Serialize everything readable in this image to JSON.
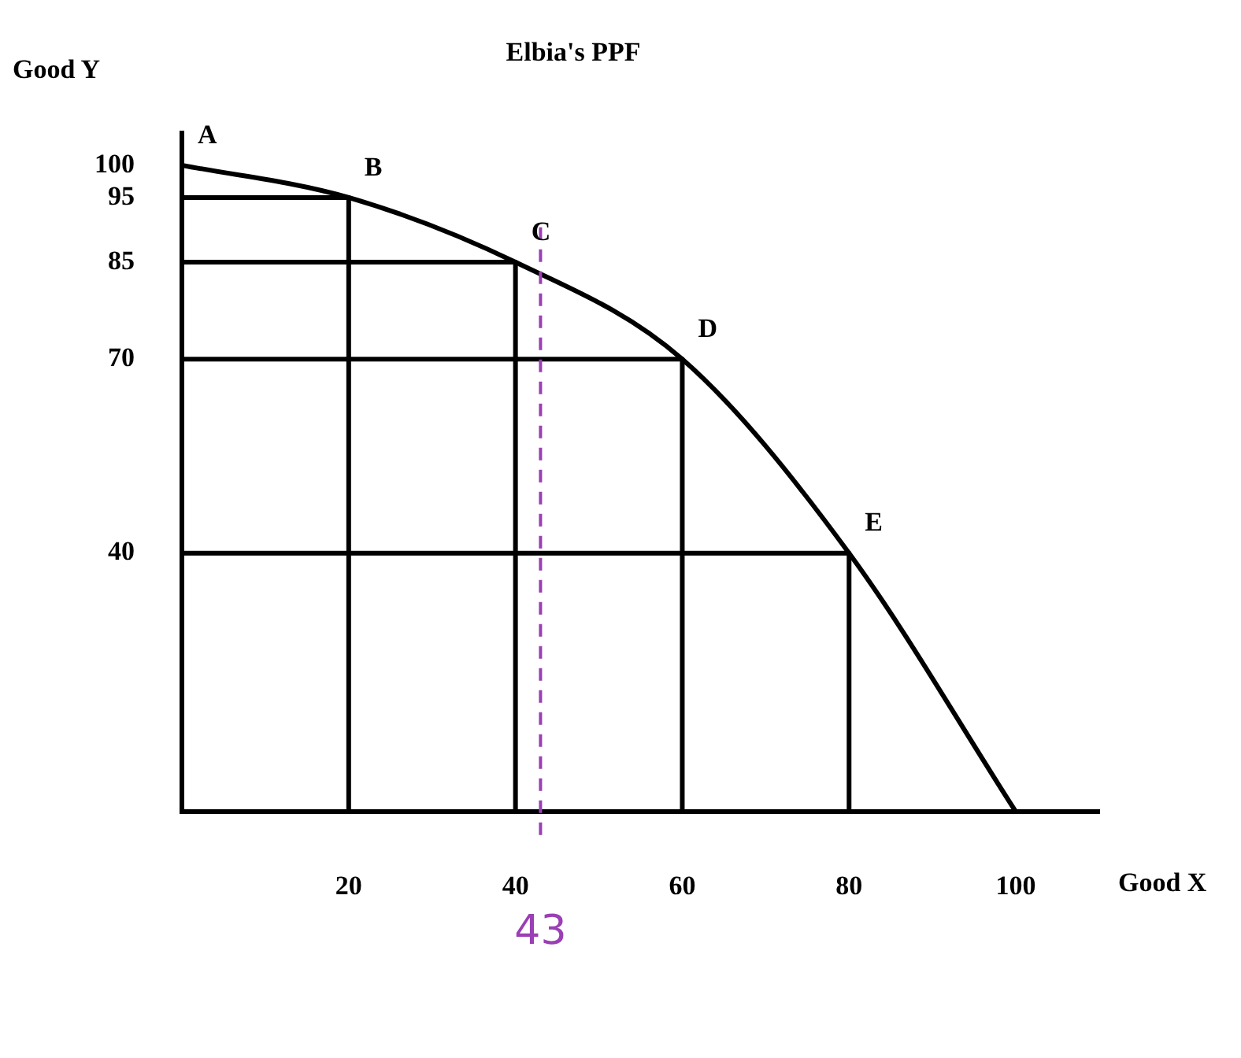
{
  "chart_data": {
    "type": "line",
    "title": "Elbia's PPF",
    "xlabel": "Good X",
    "ylabel": "Good Y",
    "x": [
      0,
      20,
      40,
      60,
      80,
      100
    ],
    "series": [
      {
        "color": "#000000",
        "values": [
          100,
          95,
          85,
          70,
          40,
          0
        ]
      },
      {
        "color": "#000000",
        "x": [
          0,
          20,
          20
        ],
        "values": [
          95,
          95,
          0
        ]
      },
      {
        "color": "#000000",
        "x": [
          0,
          40,
          40
        ],
        "values": [
          85,
          85,
          0
        ]
      },
      {
        "color": "#000000",
        "x": [
          0,
          60,
          60
        ],
        "values": [
          70,
          70,
          0
        ]
      },
      {
        "color": "#000000",
        "x": [
          0,
          80,
          80
        ],
        "values": [
          40,
          40,
          0
        ]
      }
    ],
    "xlim": [
      0,
      110
    ],
    "ylim": [
      0,
      105
    ],
    "xticks": [
      20,
      40,
      60,
      80,
      100
    ],
    "yticks": [
      40,
      70,
      85,
      95,
      100
    ],
    "grid": false,
    "legend": false,
    "marker": "none",
    "line_style": "solid",
    "ref_lines": [
      {
        "axis": "x",
        "value": 43,
        "label": "43",
        "color": "#9b3fb5",
        "line_style": "dashed"
      }
    ],
    "annotations": [
      {
        "text": "A",
        "x": 0,
        "y": 100
      },
      {
        "text": "B",
        "x": 20,
        "y": 95
      },
      {
        "text": "C",
        "x": 40,
        "y": 85
      },
      {
        "text": "D",
        "x": 60,
        "y": 70
      },
      {
        "text": "E",
        "x": 80,
        "y": 40
      }
    ]
  }
}
